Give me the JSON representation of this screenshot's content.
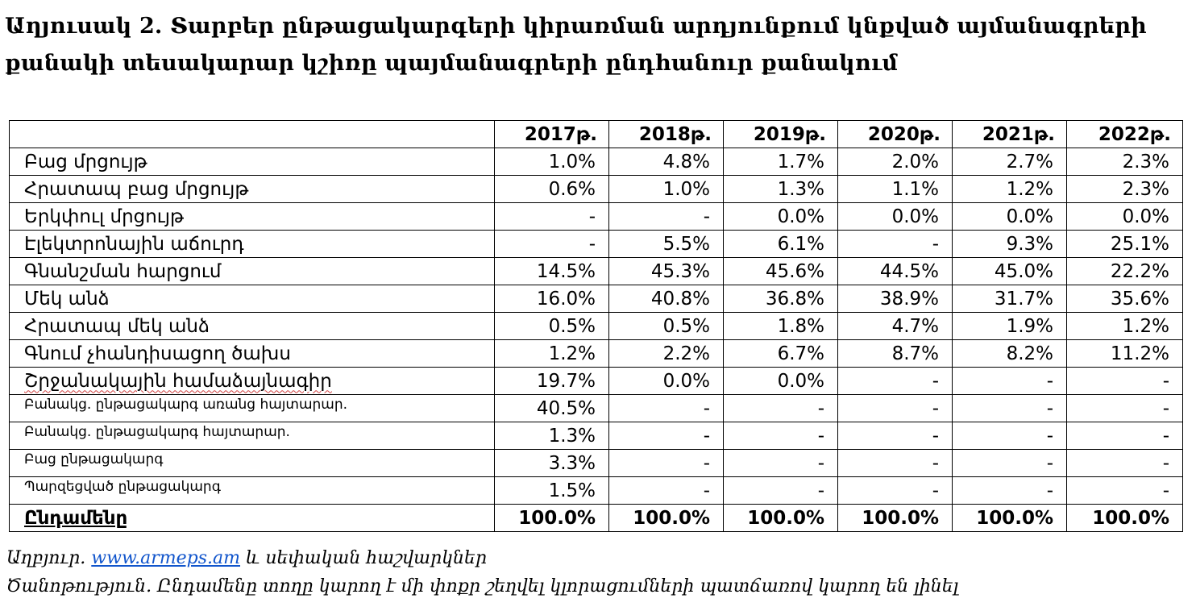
{
  "title": "Աղյուսակ 2. Տարբեր ընթացակարգերի կիրառման արդյունքում կնքված այմանագրերի քանակի տեսակարար կշիռը պայմանագրերի ընդհանուր քանակում",
  "table": {
    "header": [
      "",
      "2017թ.",
      "2018թ.",
      "2019թ.",
      "2020թ.",
      "2021թ.",
      "2022թ."
    ],
    "rows": [
      {
        "label": "Բաց մրցույթ",
        "values": [
          "1.0%",
          "4.8%",
          "1.7%",
          "2.0%",
          "2.7%",
          "2.3%"
        ]
      },
      {
        "label": "Հրատապ բաց մրցույթ",
        "values": [
          "0.6%",
          "1.0%",
          "1.3%",
          "1.1%",
          "1.2%",
          "2.3%"
        ]
      },
      {
        "label": "Երկփուլ մրցույթ",
        "values": [
          "-",
          "-",
          "0.0%",
          "0.0%",
          "0.0%",
          "0.0%"
        ]
      },
      {
        "label": "Էլեկտրոնային աճուրդ",
        "values": [
          "-",
          "5.5%",
          "6.1%",
          "-",
          "9.3%",
          "25.1%"
        ]
      },
      {
        "label": "Գնանշման հարցում",
        "values": [
          "14.5%",
          "45.3%",
          "45.6%",
          "44.5%",
          "45.0%",
          "22.2%"
        ]
      },
      {
        "label": "Մեկ անձ",
        "values": [
          "16.0%",
          "40.8%",
          "36.8%",
          "38.9%",
          "31.7%",
          "35.6%"
        ]
      },
      {
        "label": "Հրատապ մեկ անձ",
        "values": [
          "0.5%",
          "0.5%",
          "1.8%",
          "4.7%",
          "1.9%",
          "1.2%"
        ]
      },
      {
        "label": "Գնում չհանդիսացող ծախս",
        "values": [
          "1.2%",
          "2.2%",
          "6.7%",
          "8.7%",
          "8.2%",
          "11.2%"
        ]
      },
      {
        "label": "Շրջանակային համաձայնագիր",
        "values": [
          "19.7%",
          "0.0%",
          "0.0%",
          "-",
          "-",
          "-"
        ]
      },
      {
        "label": "Բանակց. ընթացակարգ առանց հայտարար.",
        "values": [
          "40.5%",
          "-",
          "-",
          "-",
          "-",
          "-"
        ]
      },
      {
        "label": "Բանակց. ընթացակարգ հայտարար.",
        "values": [
          "1.3%",
          "-",
          "-",
          "-",
          "-",
          "-"
        ]
      },
      {
        "label": "Բաց ընթացակարգ",
        "values": [
          "3.3%",
          "-",
          "-",
          "-",
          "-",
          "-"
        ]
      },
      {
        "label": "Պարզեցված ընթացակարգ",
        "values": [
          "1.5%",
          "-",
          "-",
          "-",
          "-",
          "-"
        ]
      }
    ],
    "total": {
      "label": "Ընդամենը",
      "values": [
        "100.0%",
        "100.0%",
        "100.0%",
        "100.0%",
        "100.0%",
        "100.0%"
      ]
    }
  },
  "source": {
    "prefix": "Աղբյուր.",
    "link_text": "www.armeps.am",
    "suffix": " և սեփական հաշվարկներ"
  },
  "note": "Ծանոթություն. Ընդամենը տողը կարող է մի փոքր շեղվել կլորացումների պատճառով կարող են լինել",
  "colors": {
    "link": "#1155cc",
    "spellcheck_underline": "#d04040"
  }
}
